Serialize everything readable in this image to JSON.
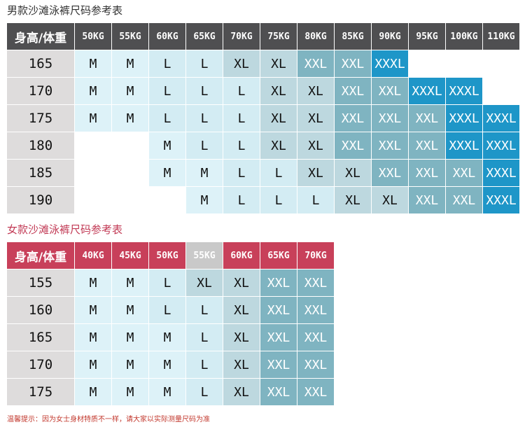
{
  "men": {
    "title": "男款沙滩泳裤尺码参考表",
    "title_color": "#333333",
    "header_bg": "#4f4f51",
    "header_highlight_bg": "#c9c9c9",
    "corner_label": "身高/体重",
    "weights": [
      "50KG",
      "55KG",
      "60KG",
      "65KG",
      "70KG",
      "75KG",
      "80KG",
      "85KG",
      "90KG",
      "95KG",
      "100KG",
      "110KG"
    ],
    "rows": [
      {
        "height": "165",
        "sizes": [
          "M",
          "M",
          "L",
          "L",
          "XL",
          "XL",
          "XXL",
          "XXL",
          "XXXL",
          "",
          "",
          ""
        ]
      },
      {
        "height": "170",
        "sizes": [
          "M",
          "M",
          "L",
          "L",
          "L",
          "XL",
          "XL",
          "XXL",
          "XXL",
          "XXXL",
          "XXXL",
          ""
        ]
      },
      {
        "height": "175",
        "sizes": [
          "M",
          "M",
          "L",
          "L",
          "L",
          "XL",
          "XL",
          "XXL",
          "XXL",
          "XXL",
          "XXXL",
          "XXXL"
        ]
      },
      {
        "height": "180",
        "sizes": [
          "",
          "",
          "M",
          "L",
          "L",
          "XL",
          "XL",
          "XXL",
          "XXL",
          "XXL",
          "XXXL",
          "XXXL"
        ]
      },
      {
        "height": "185",
        "sizes": [
          "",
          "",
          "M",
          "M",
          "L",
          "L",
          "XL",
          "XL",
          "XXL",
          "XXL",
          "XXL",
          "XXXL"
        ]
      },
      {
        "height": "190",
        "sizes": [
          "",
          "",
          "",
          "M",
          "L",
          "L",
          "L",
          "XL",
          "XL",
          "XXL",
          "XXL",
          "XXXL"
        ]
      }
    ]
  },
  "women": {
    "title": "女款沙滩泳裤尺码参考表",
    "title_color": "#c23a55",
    "header_bg": "#c8405a",
    "header_highlight_bg": "#c9c9c9",
    "corner_label": "身高/体重",
    "weights": [
      "40KG",
      "45KG",
      "50KG",
      "55KG",
      "60KG",
      "65KG",
      "70KG"
    ],
    "rows": [
      {
        "height": "155",
        "sizes": [
          "M",
          "M",
          "L",
          "XL",
          "XL",
          "XXL",
          "XXL"
        ]
      },
      {
        "height": "160",
        "sizes": [
          "M",
          "M",
          "L",
          "L",
          "XL",
          "XXL",
          "XXL"
        ]
      },
      {
        "height": "165",
        "sizes": [
          "M",
          "M",
          "M",
          "L",
          "XL",
          "XXL",
          "XXL"
        ]
      },
      {
        "height": "170",
        "sizes": [
          "M",
          "M",
          "M",
          "L",
          "XL",
          "XXL",
          "XXL"
        ]
      },
      {
        "height": "175",
        "sizes": [
          "M",
          "M",
          "M",
          "L",
          "XL",
          "XXL",
          "XXL"
        ]
      }
    ]
  },
  "size_colors": {
    "M": "#ddf2f8",
    "L": "#d3ecf3",
    "XL": "#bdd8df",
    "XXL": "#7fb4c1",
    "XXXL": "#1e96c8"
  },
  "note": "温馨提示：因为女士身材特质不一样，请大家以实际测量尺码为准"
}
